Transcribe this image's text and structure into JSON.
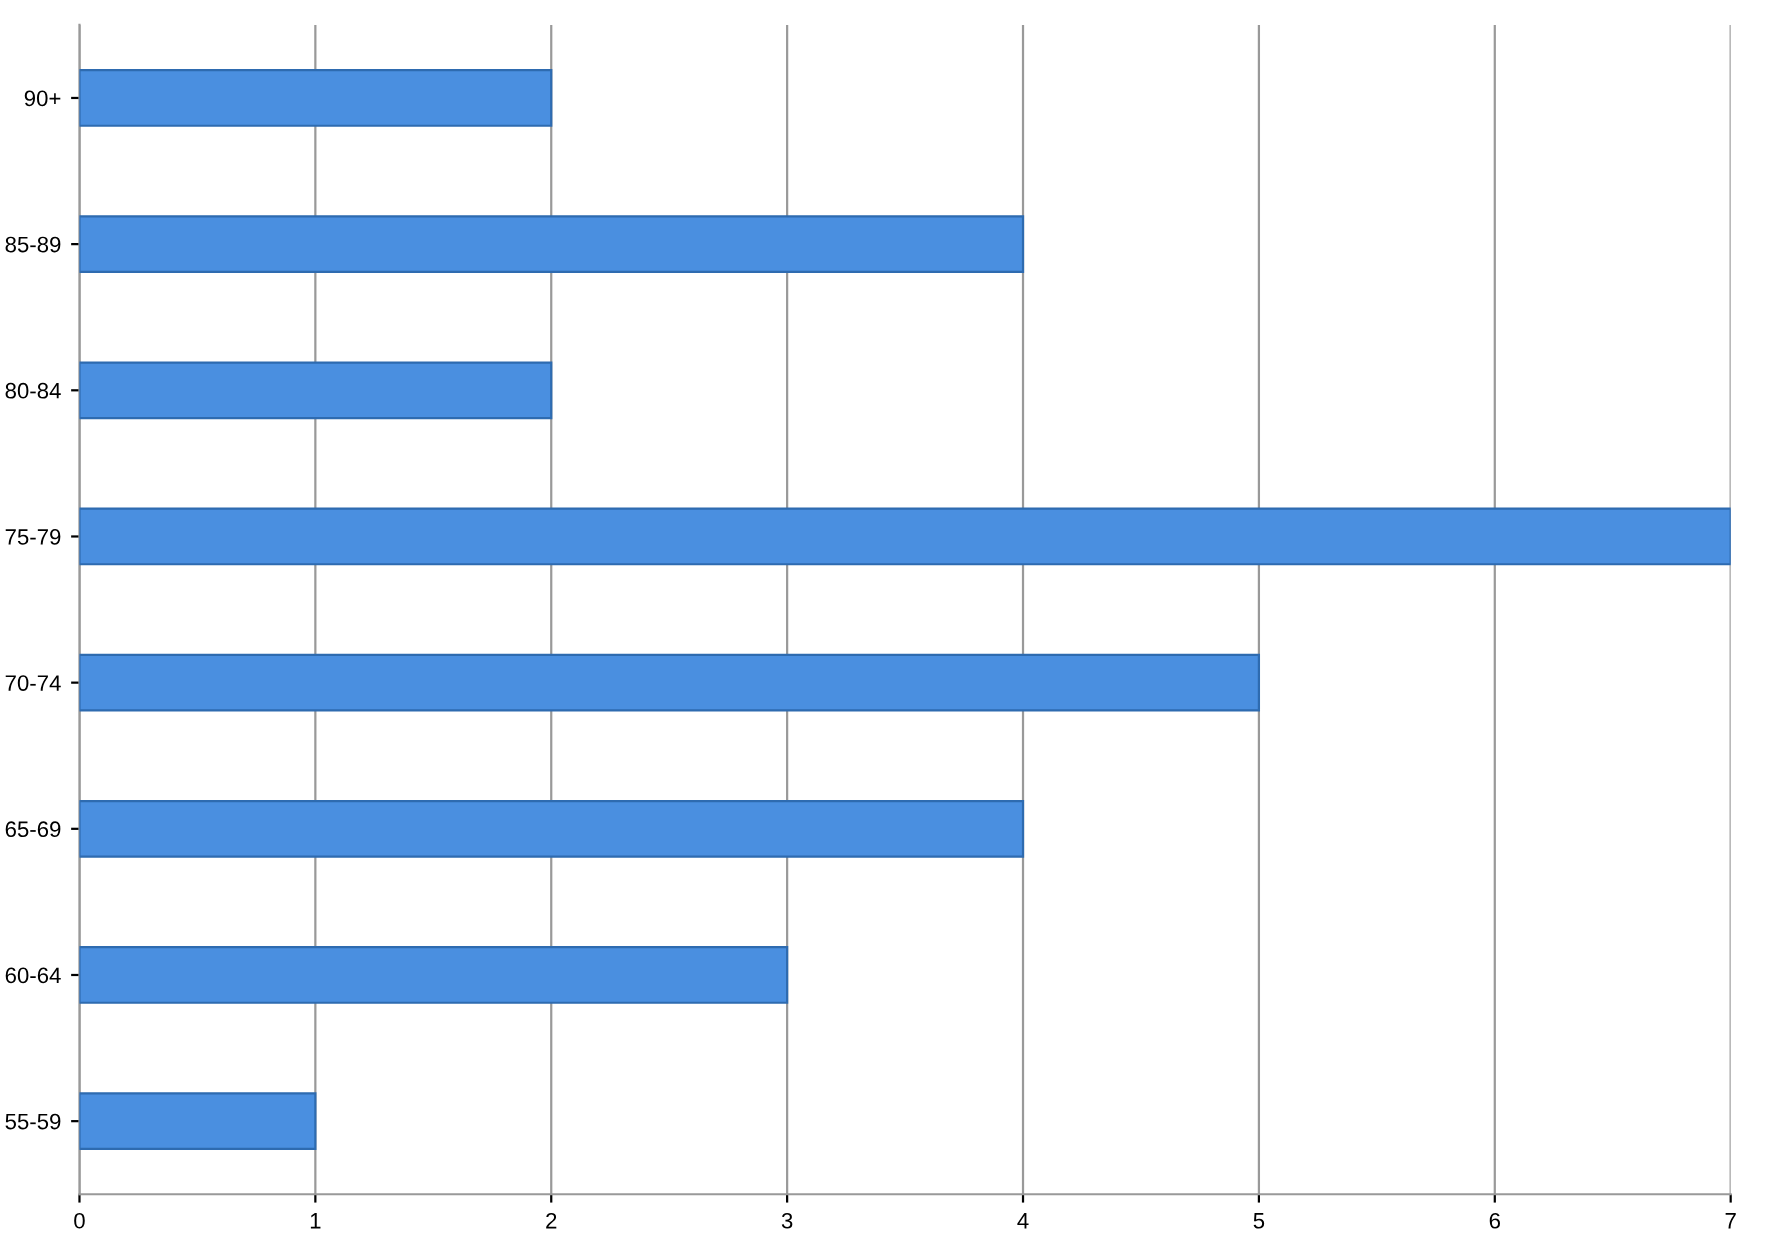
{
  "chart_data": {
    "type": "bar",
    "orientation": "horizontal",
    "categories": [
      "90+",
      "85-89",
      "80-84",
      "75-79",
      "70-74",
      "65-69",
      "60-64",
      "55-59"
    ],
    "values": [
      2,
      4,
      2,
      7,
      5,
      4,
      3,
      1
    ],
    "color": "#4a8fe0",
    "xlim": [
      0,
      7
    ],
    "xticks": [
      0,
      1,
      2,
      3,
      4,
      5,
      6,
      7
    ],
    "grid": "x",
    "legend": false
  }
}
